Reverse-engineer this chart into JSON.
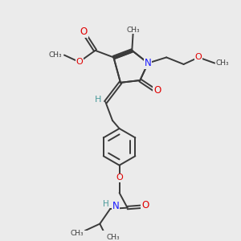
{
  "bg_color": "#ebebeb",
  "bond_color": "#3a3a3a",
  "oxygen_color": "#e00000",
  "nitrogen_color": "#1a1aff",
  "hydrogen_color": "#4a9a9a",
  "line_width": 1.4,
  "figsize": [
    3.0,
    3.0
  ],
  "dpi": 100,
  "xlim": [
    0,
    10
  ],
  "ylim": [
    0,
    10
  ]
}
